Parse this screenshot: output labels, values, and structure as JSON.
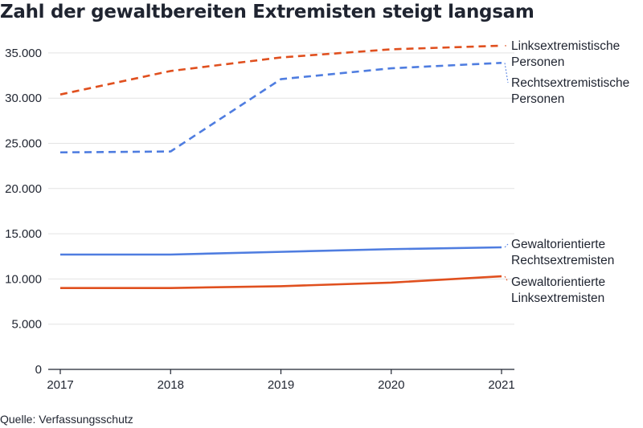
{
  "chart_data": {
    "type": "line",
    "title": "Zahl der gewaltbereiten Extremisten steigt langsam",
    "x": [
      "2017",
      "2018",
      "2019",
      "2020",
      "2021"
    ],
    "ylim": [
      0,
      37000
    ],
    "yticks": [
      "0",
      "5.000",
      "10.000",
      "15.000",
      "20.000",
      "25.000",
      "30.000",
      "35.000"
    ],
    "grid": true,
    "legend": "direct labels at line ends",
    "series": [
      {
        "name": "Linksextremistische Personen",
        "label_lines": [
          "Linksextremistische",
          "Personen"
        ],
        "values": [
          30400,
          33000,
          34500,
          35400,
          35800
        ],
        "color": "#e0501f",
        "style": "dashed"
      },
      {
        "name": "Rechtsextremistische Personen",
        "label_lines": [
          "Rechtsextremistische",
          "Personen"
        ],
        "values": [
          24000,
          24100,
          32100,
          33300,
          33900
        ],
        "color": "#4f7de0",
        "style": "dashed"
      },
      {
        "name": "Gewaltorientierte Rechtsextremisten",
        "label_lines": [
          "Gewaltorientierte",
          "Rechtsextremisten"
        ],
        "values": [
          12700,
          12700,
          13000,
          13300,
          13500
        ],
        "color": "#4f7de0",
        "style": "solid"
      },
      {
        "name": "Gewaltorientierte Linksextremisten",
        "label_lines": [
          "Gewaltorientierte",
          "Linksextremisten"
        ],
        "values": [
          9000,
          9000,
          9200,
          9600,
          10300
        ],
        "color": "#e0501f",
        "style": "solid"
      }
    ],
    "source": "Quelle: Verfassungsschutz"
  }
}
